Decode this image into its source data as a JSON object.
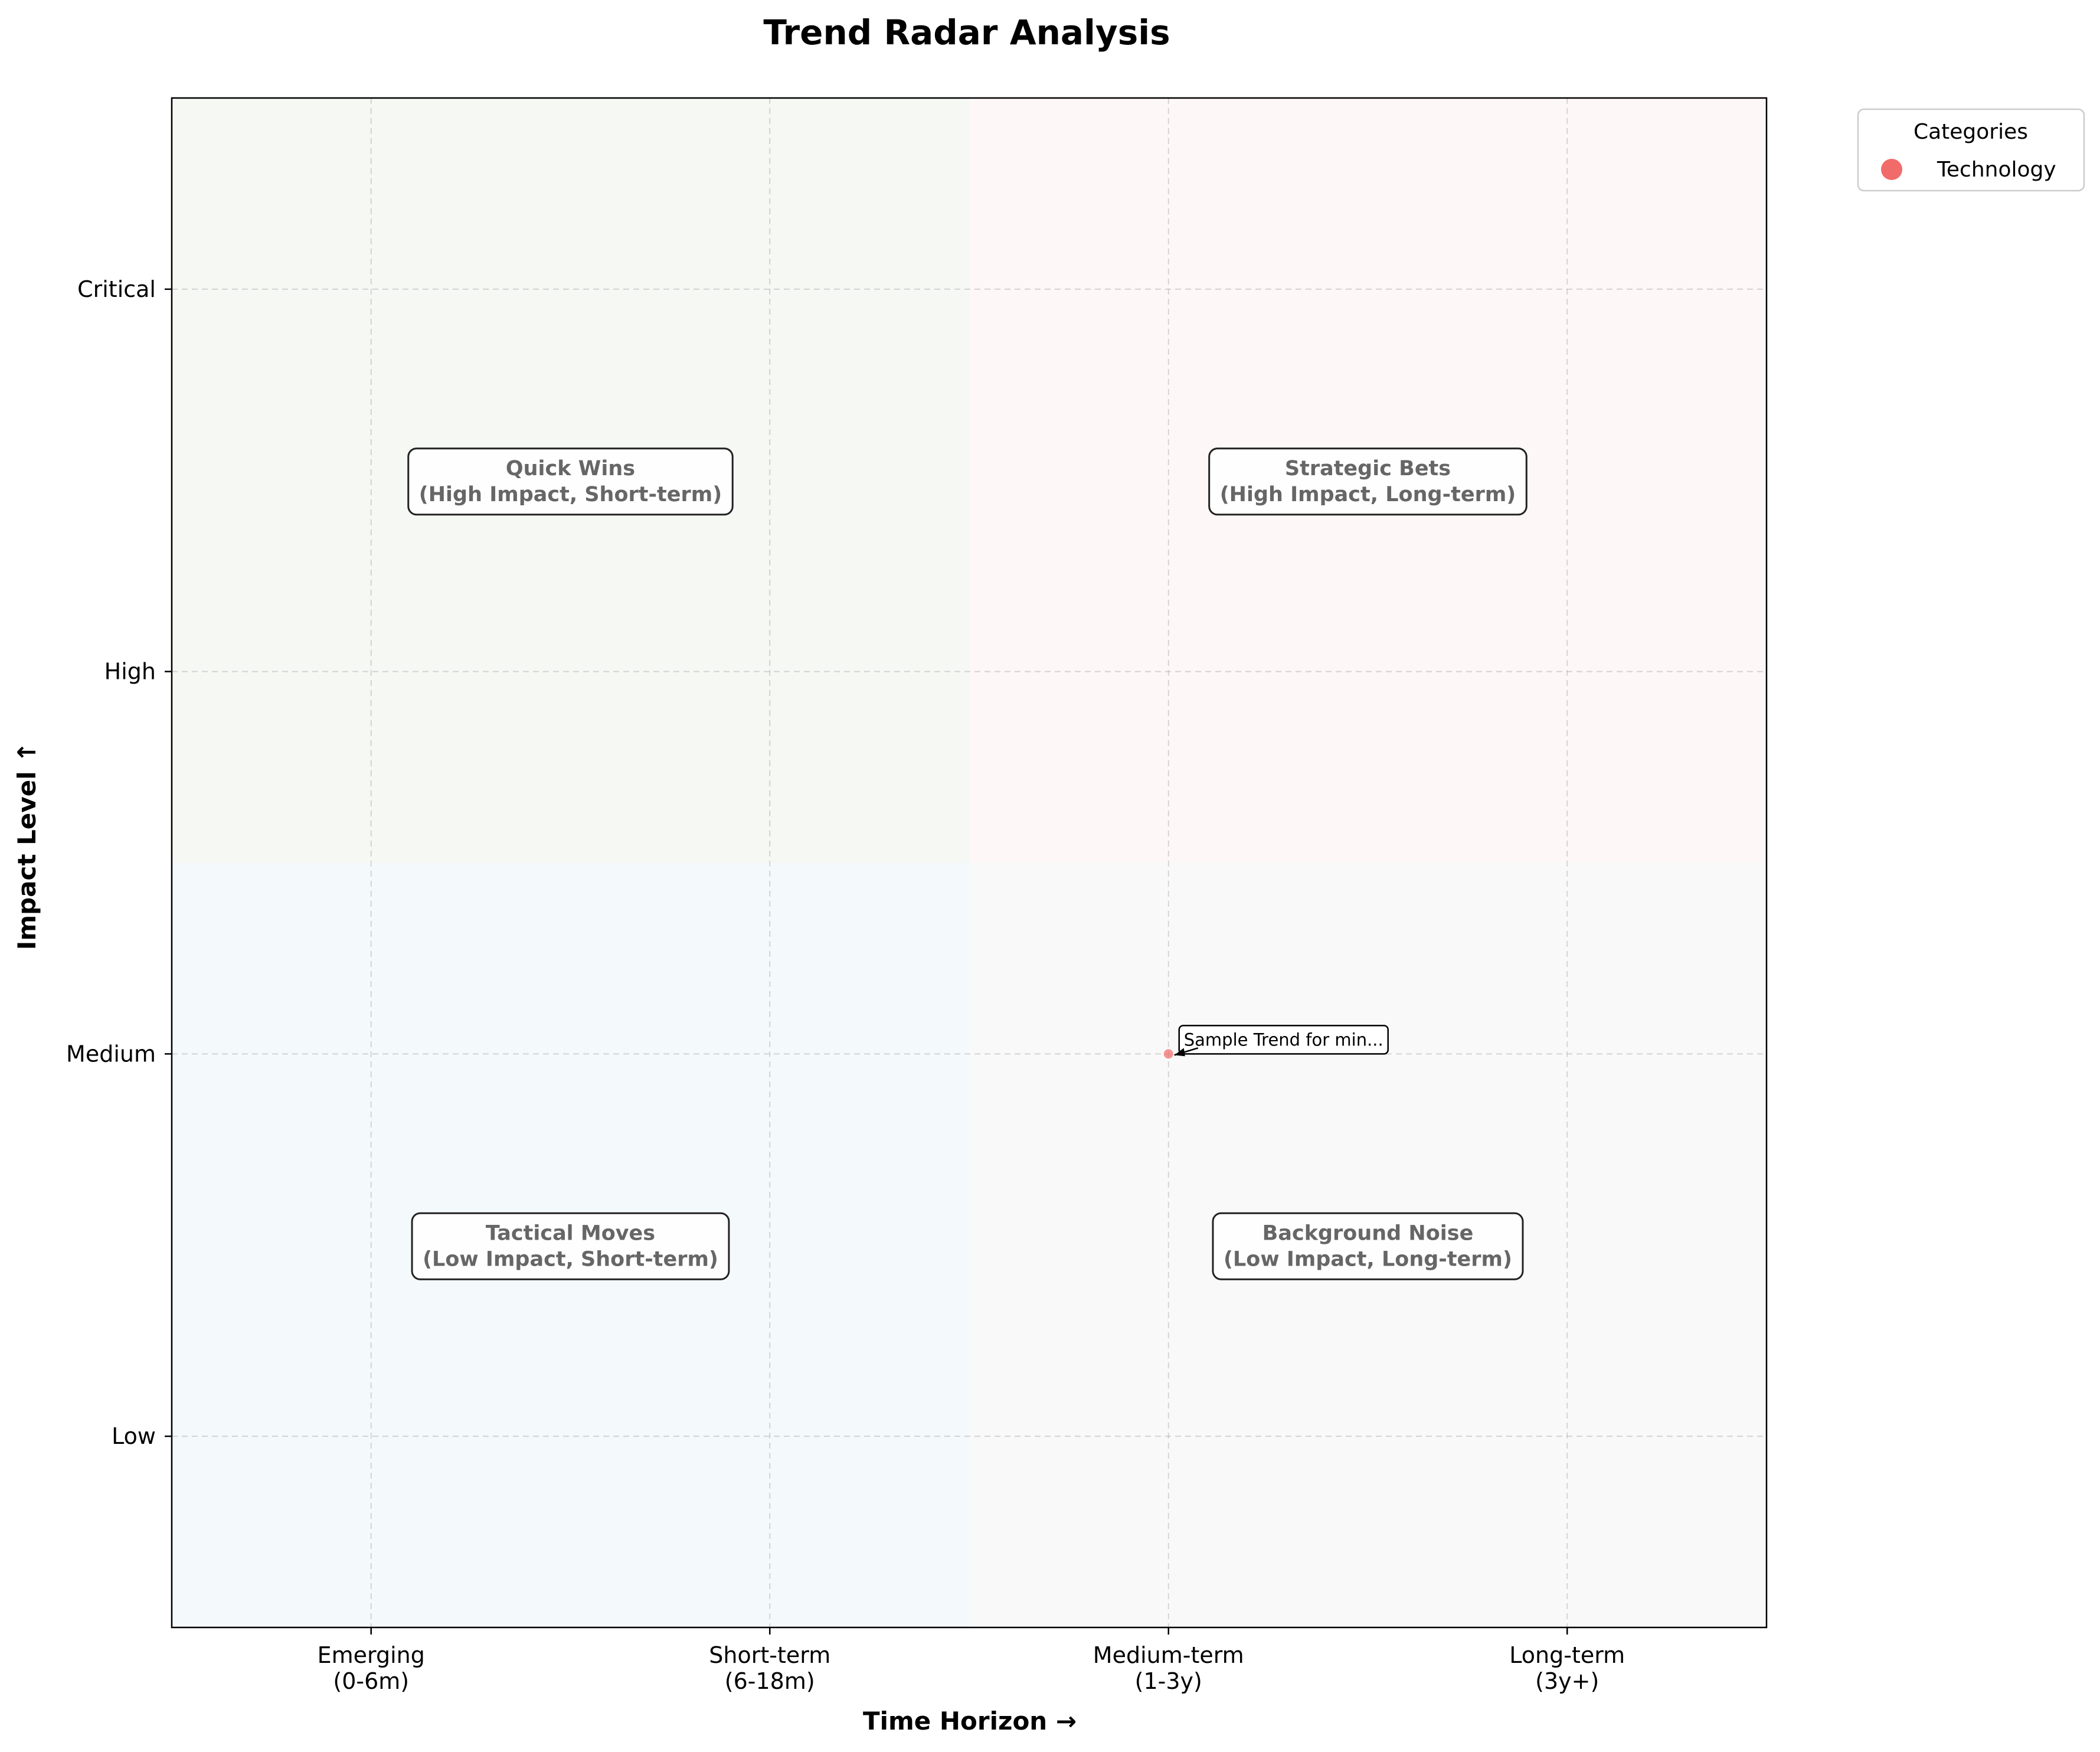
{
  "chart_data": {
    "type": "scatter",
    "title": "Trend Radar Analysis",
    "xlabel": "Time Horizon →",
    "ylabel": "Impact Level ↑",
    "x_ticks": [
      {
        "value": 0,
        "lines": [
          "Emerging",
          "(0-6m)"
        ]
      },
      {
        "value": 1,
        "lines": [
          "Short-term",
          "(6-18m)"
        ]
      },
      {
        "value": 2,
        "lines": [
          "Medium-term",
          "(1-3y)"
        ]
      },
      {
        "value": 3,
        "lines": [
          "Long-term",
          "(3y+)"
        ]
      }
    ],
    "y_ticks": [
      {
        "value": 0,
        "label": "Low"
      },
      {
        "value": 1,
        "label": "Medium"
      },
      {
        "value": 2,
        "label": "High"
      },
      {
        "value": 3,
        "label": "Critical"
      }
    ],
    "xlim": [
      -0.5,
      3.5
    ],
    "ylim": [
      -0.5,
      3.5
    ],
    "grid": true,
    "quadrants": [
      {
        "lines": [
          "Quick Wins",
          "(High Impact, Short-term)"
        ],
        "x": 0.5,
        "y": 2.5,
        "fill": "#f6f8f4",
        "x0": -0.5,
        "x1": 1.5,
        "y0": 1.5,
        "y1": 3.5
      },
      {
        "lines": [
          "Strategic Bets",
          "(High Impact, Long-term)"
        ],
        "x": 2.5,
        "y": 2.5,
        "fill": "#fdf7f7",
        "x0": 1.5,
        "x1": 3.5,
        "y0": 1.5,
        "y1": 3.5
      },
      {
        "lines": [
          "Tactical Moves",
          "(Low Impact, Short-term)"
        ],
        "x": 0.5,
        "y": 0.5,
        "fill": "#f4f9fc",
        "x0": -0.5,
        "x1": 1.5,
        "y0": -0.5,
        "y1": 1.5
      },
      {
        "lines": [
          "Background Noise",
          "(Low Impact, Long-term)"
        ],
        "x": 2.5,
        "y": 0.5,
        "fill": "#f9f9f9",
        "x0": 1.5,
        "x1": 3.5,
        "y0": -0.5,
        "y1": 1.5
      }
    ],
    "series": [
      {
        "name": "Technology",
        "color": "#f26b6b",
        "points": [
          {
            "x": 2,
            "y": 1,
            "label": "Sample Trend for min..."
          }
        ]
      }
    ],
    "legend": {
      "title": "Categories",
      "placement": "outside-top-right"
    }
  }
}
